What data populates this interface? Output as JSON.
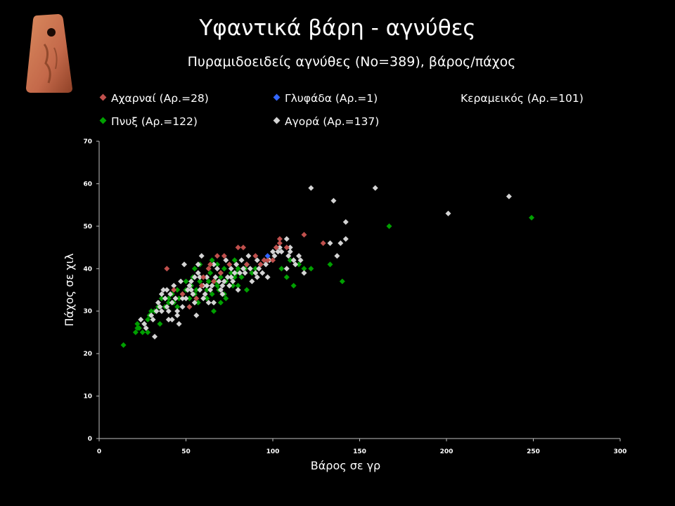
{
  "slide": {
    "title": "Υφαντικά βάρη - αγνύθες"
  },
  "thumbnail": {
    "description_icon": "loom-weight-icon",
    "color": "#c4694a"
  },
  "chart_data": {
    "type": "scatter",
    "title": "Πυραμιδοειδείς αγνύθες (Νο=389), βάρος/πάχος",
    "xlabel": "Βάρος σε γρ",
    "ylabel": "Πάχος σε χιλ",
    "xlim": [
      0,
      300
    ],
    "ylim": [
      0,
      70
    ],
    "xticks": [
      0,
      50,
      100,
      150,
      200,
      250,
      300
    ],
    "yticks": [
      0,
      10,
      20,
      30,
      40,
      50,
      60,
      70
    ],
    "grid": false,
    "legend_position": "top",
    "series": [
      {
        "name": "Αχαρναί (Αρ.=28)",
        "color": "#c0504d",
        "points": [
          [
            39,
            40
          ],
          [
            43,
            35
          ],
          [
            48,
            34
          ],
          [
            52,
            31
          ],
          [
            56,
            33
          ],
          [
            59,
            36
          ],
          [
            63,
            40
          ],
          [
            66,
            37
          ],
          [
            68,
            43
          ],
          [
            72,
            43
          ],
          [
            75,
            41
          ],
          [
            80,
            45
          ],
          [
            83,
            45
          ],
          [
            85,
            41
          ],
          [
            90,
            43
          ],
          [
            93,
            41
          ],
          [
            95,
            42
          ],
          [
            97,
            42
          ],
          [
            100,
            42
          ],
          [
            102,
            45
          ],
          [
            104,
            46
          ],
          [
            104,
            47
          ],
          [
            108,
            45
          ],
          [
            118,
            48
          ],
          [
            129,
            46
          ],
          [
            60,
            38
          ],
          [
            64,
            41
          ],
          [
            70,
            39
          ]
        ]
      },
      {
        "name": "Γλυφάδα (Αρ.=1)",
        "color": "#3366ff",
        "points": [
          [
            97,
            43
          ]
        ]
      },
      {
        "name": "Κεραμεικός (Αρ.=101)",
        "color": "#000000",
        "points": []
      },
      {
        "name": "Πνυξ (Αρ.=122)",
        "color": "#00a000",
        "points": [
          [
            14,
            22
          ],
          [
            21,
            25
          ],
          [
            22,
            27
          ],
          [
            22,
            26
          ],
          [
            23,
            26
          ],
          [
            25,
            25
          ],
          [
            26,
            27
          ],
          [
            28,
            25
          ],
          [
            28,
            28
          ],
          [
            29,
            29
          ],
          [
            30,
            30
          ],
          [
            32,
            30
          ],
          [
            34,
            31
          ],
          [
            35,
            27
          ],
          [
            36,
            33
          ],
          [
            38,
            31
          ],
          [
            40,
            32
          ],
          [
            40,
            33
          ],
          [
            42,
            34
          ],
          [
            43,
            32
          ],
          [
            45,
            31
          ],
          [
            46,
            33
          ],
          [
            48,
            34
          ],
          [
            50,
            35
          ],
          [
            52,
            33
          ],
          [
            53,
            36
          ],
          [
            55,
            34
          ],
          [
            56,
            35
          ],
          [
            58,
            37
          ],
          [
            60,
            38
          ],
          [
            60,
            36
          ],
          [
            62,
            35
          ],
          [
            63,
            40
          ],
          [
            64,
            39
          ],
          [
            65,
            34
          ],
          [
            65,
            42
          ],
          [
            66,
            30
          ],
          [
            67,
            37
          ],
          [
            68,
            36
          ],
          [
            70,
            38
          ],
          [
            70,
            32
          ],
          [
            72,
            34
          ],
          [
            72,
            40
          ],
          [
            73,
            37
          ],
          [
            75,
            36
          ],
          [
            76,
            39
          ],
          [
            77,
            36
          ],
          [
            78,
            38
          ],
          [
            80,
            36
          ],
          [
            80,
            40
          ],
          [
            82,
            38
          ],
          [
            85,
            35
          ],
          [
            88,
            39
          ],
          [
            90,
            40
          ],
          [
            105,
            40
          ],
          [
            108,
            38
          ],
          [
            110,
            42
          ],
          [
            112,
            36
          ],
          [
            115,
            41
          ],
          [
            118,
            40
          ],
          [
            122,
            40
          ],
          [
            133,
            41
          ],
          [
            140,
            37
          ],
          [
            167,
            50
          ],
          [
            249,
            52
          ],
          [
            55,
            40
          ],
          [
            58,
            41
          ],
          [
            62,
            33
          ],
          [
            68,
            41
          ],
          [
            74,
            38
          ],
          [
            78,
            42
          ],
          [
            84,
            40
          ],
          [
            45,
            35
          ],
          [
            50,
            37
          ],
          [
            54,
            38
          ],
          [
            57,
            32
          ],
          [
            63,
            37
          ],
          [
            69,
            35
          ],
          [
            73,
            33
          ],
          [
            79,
            39
          ]
        ]
      },
      {
        "name": "Αγορά (Αρ.=137)",
        "color": "#d4d4d4",
        "points": [
          [
            24,
            28
          ],
          [
            26,
            27
          ],
          [
            27,
            26
          ],
          [
            30,
            29
          ],
          [
            31,
            28
          ],
          [
            32,
            24
          ],
          [
            33,
            30
          ],
          [
            34,
            32
          ],
          [
            35,
            31
          ],
          [
            36,
            34
          ],
          [
            37,
            35
          ],
          [
            38,
            33
          ],
          [
            39,
            35
          ],
          [
            40,
            30
          ],
          [
            40,
            28
          ],
          [
            41,
            34
          ],
          [
            42,
            32
          ],
          [
            43,
            36
          ],
          [
            44,
            33
          ],
          [
            45,
            29
          ],
          [
            45,
            30
          ],
          [
            46,
            27
          ],
          [
            47,
            37
          ],
          [
            48,
            31
          ],
          [
            49,
            41
          ],
          [
            50,
            33
          ],
          [
            51,
            35
          ],
          [
            52,
            36
          ],
          [
            53,
            37
          ],
          [
            54,
            34
          ],
          [
            55,
            32
          ],
          [
            55,
            38
          ],
          [
            56,
            29
          ],
          [
            57,
            41
          ],
          [
            58,
            35
          ],
          [
            58,
            38
          ],
          [
            59,
            43
          ],
          [
            60,
            33
          ],
          [
            60,
            36
          ],
          [
            61,
            34
          ],
          [
            62,
            38
          ],
          [
            63,
            32
          ],
          [
            64,
            35
          ],
          [
            65,
            36
          ],
          [
            66,
            32
          ],
          [
            67,
            38
          ],
          [
            68,
            40
          ],
          [
            69,
            37
          ],
          [
            70,
            39
          ],
          [
            70,
            35
          ],
          [
            71,
            36
          ],
          [
            72,
            37
          ],
          [
            73,
            42
          ],
          [
            74,
            38
          ],
          [
            75,
            36
          ],
          [
            76,
            40
          ],
          [
            77,
            37
          ],
          [
            78,
            39
          ],
          [
            79,
            41
          ],
          [
            80,
            35
          ],
          [
            81,
            39
          ],
          [
            82,
            42
          ],
          [
            83,
            40
          ],
          [
            85,
            41
          ],
          [
            86,
            43
          ],
          [
            88,
            37
          ],
          [
            90,
            39
          ],
          [
            91,
            38
          ],
          [
            92,
            40
          ],
          [
            93,
            41
          ],
          [
            94,
            39
          ],
          [
            95,
            42
          ],
          [
            97,
            38
          ],
          [
            98,
            42
          ],
          [
            100,
            44
          ],
          [
            101,
            43
          ],
          [
            102,
            45
          ],
          [
            104,
            45
          ],
          [
            105,
            44
          ],
          [
            108,
            40
          ],
          [
            108,
            47
          ],
          [
            109,
            43
          ],
          [
            110,
            44
          ],
          [
            110,
            45
          ],
          [
            112,
            42
          ],
          [
            113,
            41
          ],
          [
            115,
            43
          ],
          [
            116,
            42
          ],
          [
            118,
            39
          ],
          [
            122,
            59
          ],
          [
            133,
            46
          ],
          [
            135,
            56
          ],
          [
            137,
            43
          ],
          [
            139,
            46
          ],
          [
            142,
            47
          ],
          [
            142,
            51
          ],
          [
            159,
            59
          ],
          [
            201,
            53
          ],
          [
            236,
            57
          ],
          [
            36,
            30
          ],
          [
            39,
            31
          ],
          [
            42,
            28
          ],
          [
            48,
            33
          ],
          [
            53,
            35
          ],
          [
            57,
            39
          ],
          [
            62,
            36
          ],
          [
            66,
            41
          ],
          [
            71,
            34
          ],
          [
            76,
            38
          ],
          [
            84,
            39
          ],
          [
            87,
            40
          ],
          [
            91,
            42
          ],
          [
            96,
            41
          ],
          [
            103,
            44
          ]
        ]
      }
    ]
  }
}
